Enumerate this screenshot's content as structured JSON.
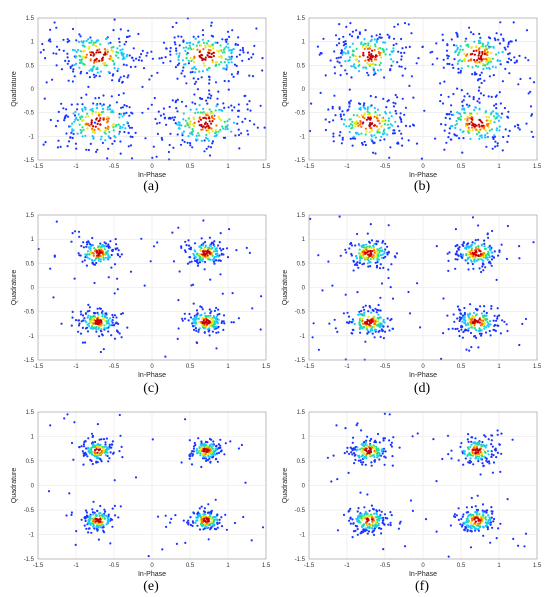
{
  "chart_data": [
    {
      "type": "scatter",
      "panel_label": "(a)",
      "xlabel": "In-Phase",
      "ylabel": "Quadrature",
      "xlim": [
        -1.5,
        1.5
      ],
      "ylim": [
        -1.5,
        1.5
      ],
      "x_ticks": [
        "-1.5",
        "-1",
        "-0.5",
        "0",
        "0.5",
        "1",
        "1.5"
      ],
      "y_ticks": [
        "1.5",
        "1",
        "0.5",
        "0",
        "-0.5",
        "-1",
        "-1.5"
      ],
      "grid": true,
      "constellation_centers": [
        [
          -0.71,
          0.71
        ],
        [
          0.71,
          0.71
        ],
        [
          -0.71,
          -0.71
        ],
        [
          0.71,
          -0.71
        ]
      ],
      "spread": 0.26,
      "points_per_cluster": 230,
      "density_colors": [
        "#1a33ff",
        "#18c6ff",
        "#22e08a",
        "#e8e81a",
        "#ff6a00",
        "#c80000"
      ]
    },
    {
      "type": "scatter",
      "panel_label": "(b)",
      "xlabel": "In-Phase",
      "ylabel": "Quadrature",
      "xlim": [
        -1.5,
        1.5
      ],
      "ylim": [
        -1.5,
        1.5
      ],
      "x_ticks": [
        "-1.5",
        "-1",
        "-0.5",
        "0",
        "0.5",
        "1",
        "1.5"
      ],
      "y_ticks": [
        "1.5",
        "1",
        "0.5",
        "0",
        "-0.5",
        "-1",
        "-1.5"
      ],
      "grid": true,
      "constellation_centers": [
        [
          -0.71,
          0.71
        ],
        [
          0.71,
          0.71
        ],
        [
          -0.71,
          -0.71
        ],
        [
          0.71,
          -0.71
        ]
      ],
      "spread": 0.24,
      "points_per_cluster": 220,
      "density_colors": [
        "#1a33ff",
        "#18c6ff",
        "#22e08a",
        "#e8e81a",
        "#ff6a00",
        "#c80000"
      ]
    },
    {
      "type": "scatter",
      "panel_label": "(c)",
      "xlabel": "In-Phase",
      "ylabel": "Quadrature",
      "xlim": [
        -1.5,
        1.5
      ],
      "ylim": [
        -1.5,
        1.5
      ],
      "x_ticks": [
        "-1.5",
        "-1",
        "-0.5",
        "0",
        "0.5",
        "1",
        "1.5"
      ],
      "y_ticks": [
        "1.5",
        "1",
        "0.5",
        "0",
        "-0.5",
        "-1",
        "-1.5"
      ],
      "grid": true,
      "constellation_centers": [
        [
          -0.71,
          0.71
        ],
        [
          0.71,
          0.71
        ],
        [
          -0.71,
          -0.71
        ],
        [
          0.71,
          -0.71
        ]
      ],
      "spread": 0.12,
      "points_per_cluster": 170,
      "density_colors": [
        "#1a33ff",
        "#18c6ff",
        "#22e08a",
        "#e8e81a",
        "#ff6a00",
        "#c80000"
      ]
    },
    {
      "type": "scatter",
      "panel_label": "(d)",
      "xlabel": "In-Phase",
      "ylabel": "Quadrature",
      "xlim": [
        -1.5,
        1.5
      ],
      "ylim": [
        -1.5,
        1.5
      ],
      "x_ticks": [
        "-1.5",
        "-1",
        "-0.5",
        "0",
        "0.5",
        "1",
        "1.5"
      ],
      "y_ticks": [
        "1.5",
        "1",
        "0.5",
        "0",
        "-0.5",
        "-1",
        "-1.5"
      ],
      "grid": true,
      "constellation_centers": [
        [
          -0.71,
          0.71
        ],
        [
          0.71,
          0.71
        ],
        [
          -0.71,
          -0.71
        ],
        [
          0.71,
          -0.71
        ]
      ],
      "spread": 0.14,
      "points_per_cluster": 180,
      "density_colors": [
        "#1a33ff",
        "#18c6ff",
        "#22e08a",
        "#e8e81a",
        "#ff6a00",
        "#c80000"
      ]
    },
    {
      "type": "scatter",
      "panel_label": "(e)",
      "xlabel": "In-Phase",
      "ylabel": "Quadrature",
      "xlim": [
        -1.5,
        1.5
      ],
      "ylim": [
        -1.5,
        1.5
      ],
      "x_ticks": [
        "-1.5",
        "-1",
        "-0.5",
        "0",
        "0.5",
        "1",
        "1.5"
      ],
      "y_ticks": [
        "1.5",
        "1",
        "0.5",
        "0",
        "-0.5",
        "-1",
        "-1.5"
      ],
      "grid": true,
      "constellation_centers": [
        [
          -0.71,
          0.71
        ],
        [
          0.71,
          0.71
        ],
        [
          -0.71,
          -0.71
        ],
        [
          0.71,
          -0.71
        ]
      ],
      "spread": 0.1,
      "points_per_cluster": 160,
      "density_colors": [
        "#1a33ff",
        "#18c6ff",
        "#22e08a",
        "#e8e81a",
        "#ff6a00",
        "#c80000"
      ]
    },
    {
      "type": "scatter",
      "panel_label": "(f)",
      "xlabel": "In-Phase",
      "ylabel": "Quadrature",
      "xlim": [
        -1.5,
        1.5
      ],
      "ylim": [
        -1.5,
        1.5
      ],
      "x_ticks": [
        "-1.5",
        "-1",
        "-0.5",
        "0",
        "0.5",
        "1",
        "1.5"
      ],
      "y_ticks": [
        "1.5",
        "1",
        "0.5",
        "0",
        "-0.5",
        "-1",
        "-1.5"
      ],
      "grid": true,
      "constellation_centers": [
        [
          -0.71,
          0.71
        ],
        [
          0.71,
          0.71
        ],
        [
          -0.71,
          -0.71
        ],
        [
          0.71,
          -0.71
        ]
      ],
      "spread": 0.12,
      "points_per_cluster": 170,
      "density_colors": [
        "#1a33ff",
        "#18c6ff",
        "#22e08a",
        "#e8e81a",
        "#ff6a00",
        "#c80000"
      ]
    }
  ]
}
